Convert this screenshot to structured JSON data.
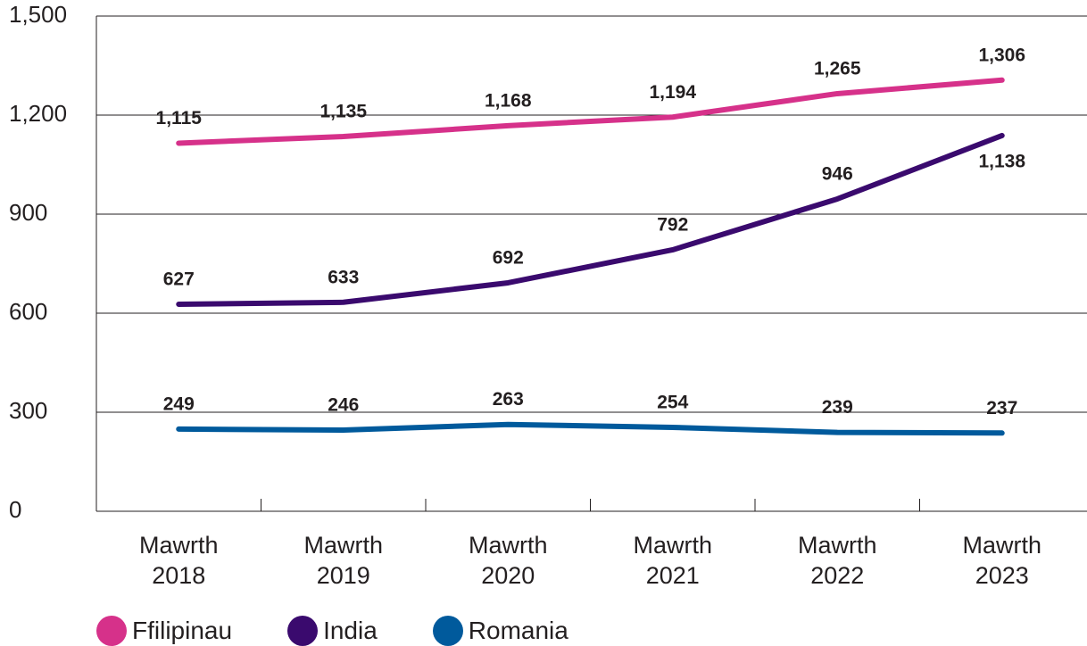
{
  "chart_data": {
    "type": "line",
    "categories": [
      "Mawrth 2018",
      "Mawrth 2019",
      "Mawrth 2020",
      "Mawrth 2021",
      "Mawrth 2022",
      "Mawrth 2023"
    ],
    "series": [
      {
        "name": "Ffilipinau",
        "color": "#d6318a",
        "values": [
          1115,
          1135,
          1168,
          1194,
          1265,
          1306
        ],
        "value_labels": [
          "1,115",
          "1,135",
          "1,168",
          "1,194",
          "1,265",
          "1,306"
        ]
      },
      {
        "name": "India",
        "color": "#3a0a6e",
        "values": [
          627,
          633,
          692,
          792,
          946,
          1138
        ],
        "value_labels": [
          "627",
          "633",
          "692",
          "792",
          "946",
          "1,138"
        ]
      },
      {
        "name": "Romania",
        "color": "#005a9c",
        "values": [
          249,
          246,
          263,
          254,
          239,
          237
        ],
        "value_labels": [
          "249",
          "246",
          "263",
          "254",
          "239",
          "237"
        ]
      }
    ],
    "ylim": [
      0,
      1500
    ],
    "yticks": [
      0,
      300,
      600,
      900,
      {
        "value": 1200,
        "label": "1,200"
      },
      {
        "value": 1500,
        "label": "1,500"
      }
    ],
    "grid": true
  }
}
